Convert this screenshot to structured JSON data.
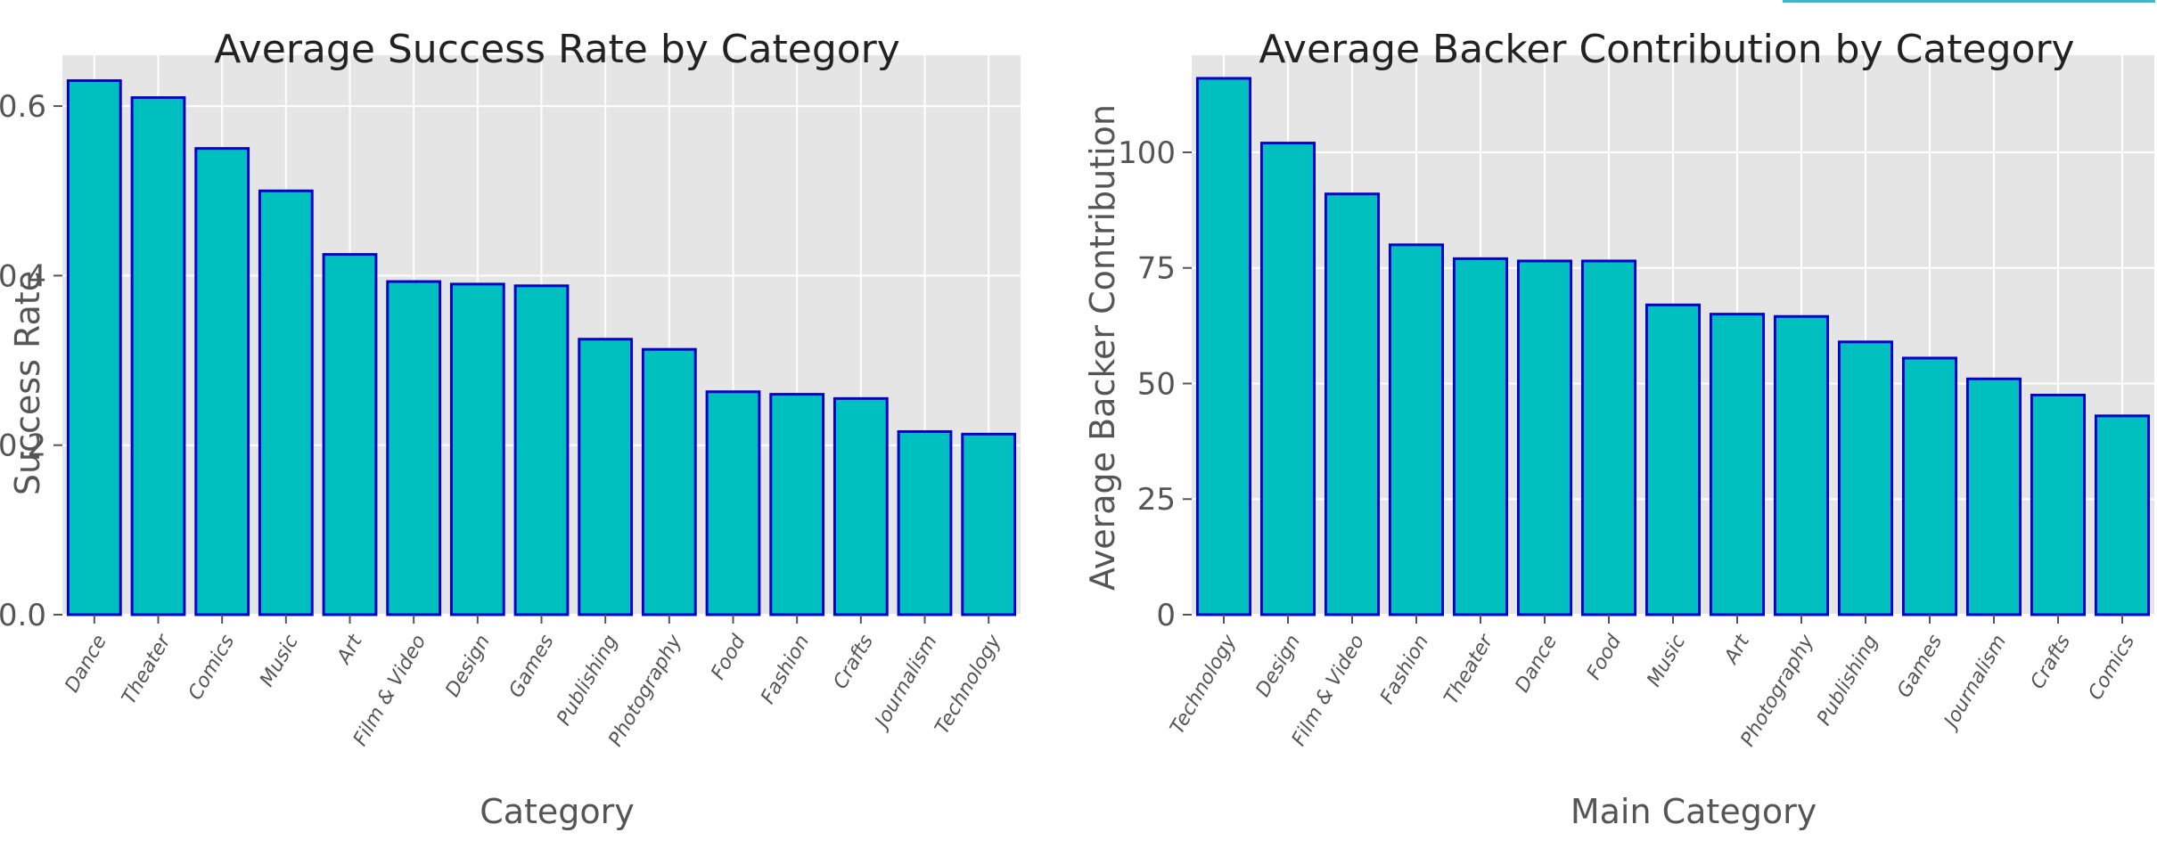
{
  "colors": {
    "bar_fill": "#00bfbf",
    "bar_edge": "#0000cc",
    "panel_bg": "#e5e5e5",
    "grid": "#ffffff",
    "accent_strip": "#3fb7c9"
  },
  "chart_data": [
    {
      "type": "bar",
      "title": "Average Success Rate by Category",
      "xlabel": "Category",
      "ylabel": "Success Rate",
      "categories": [
        "Dance",
        "Theater",
        "Comics",
        "Music",
        "Art",
        "Film & Video",
        "Design",
        "Games",
        "Publishing",
        "Photography",
        "Food",
        "Fashion",
        "Crafts",
        "Journalism",
        "Technology"
      ],
      "values": [
        0.63,
        0.61,
        0.55,
        0.5,
        0.425,
        0.393,
        0.39,
        0.388,
        0.325,
        0.313,
        0.263,
        0.26,
        0.255,
        0.216,
        0.213
      ],
      "ylim": [
        0,
        0.66
      ],
      "yticks": [
        0.0,
        0.2,
        0.4,
        0.6
      ],
      "ytick_labels": [
        "0.0",
        "0.2",
        "0.4",
        "0.6"
      ],
      "grid": true
    },
    {
      "type": "bar",
      "title": "Average Backer Contribution by Category",
      "xlabel": "Main Category",
      "ylabel": "Average Backer Contribution",
      "categories": [
        "Technology",
        "Design",
        "Film & Video",
        "Fashion",
        "Theater",
        "Dance",
        "Food",
        "Music",
        "Art",
        "Photography",
        "Publishing",
        "Games",
        "Journalism",
        "Crafts",
        "Comics"
      ],
      "values": [
        116,
        102,
        91,
        80,
        77,
        76.5,
        76.5,
        67,
        65,
        64.5,
        59,
        55.5,
        51,
        47.5,
        43
      ],
      "ylim": [
        0,
        121
      ],
      "yticks": [
        0,
        25,
        50,
        75,
        100
      ],
      "ytick_labels": [
        "0",
        "25",
        "50",
        "75",
        "100"
      ],
      "grid": true
    }
  ]
}
